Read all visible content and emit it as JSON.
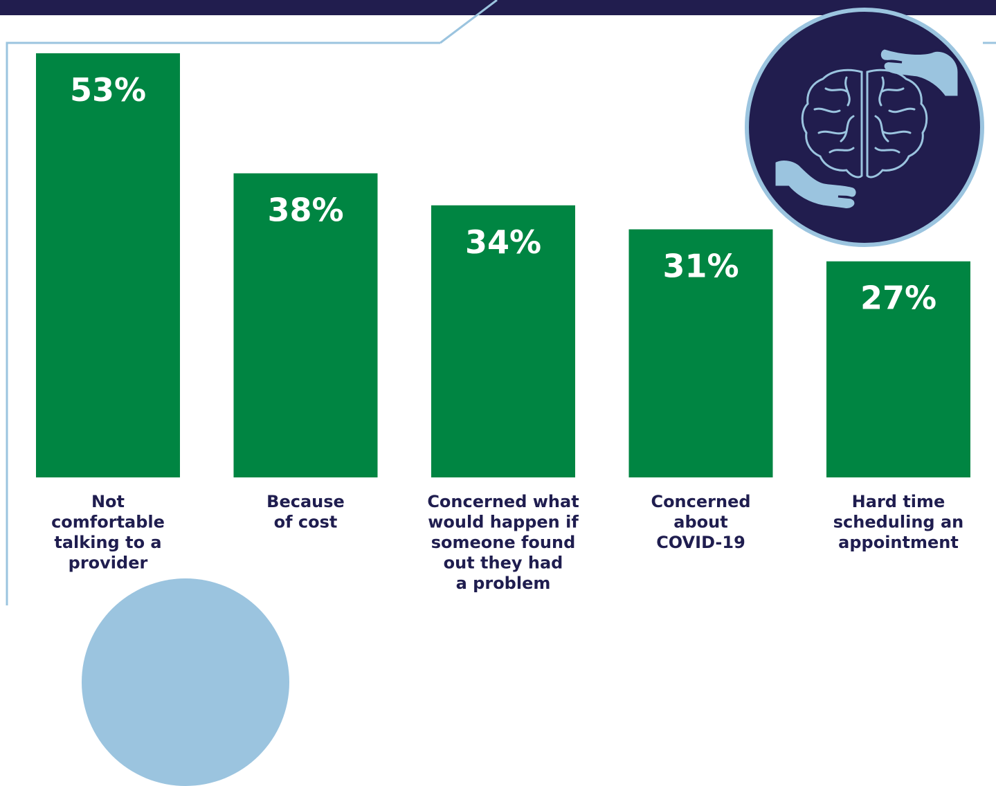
{
  "colors": {
    "navy": "#211d4e",
    "bar_green": "#008542",
    "light_blue": "#9bc4df",
    "label_navy": "#1f1d4f"
  },
  "icons": [
    "brain-icon",
    "hand-icon"
  ],
  "chart_data": {
    "type": "bar",
    "title": "",
    "xlabel": "",
    "ylabel": "",
    "ylim": [
      0,
      53
    ],
    "grid": false,
    "categories": [
      [
        "Not",
        "comfortable",
        "talking to a",
        "provider"
      ],
      [
        "Because",
        "of cost"
      ],
      [
        "Concerned what",
        "would happen if",
        "someone found",
        "out they had",
        "a problem"
      ],
      [
        "Concerned",
        "about",
        "COVID-19"
      ],
      [
        "Hard time",
        "scheduling an",
        "appointment"
      ]
    ],
    "values": [
      53,
      38,
      34,
      31,
      27
    ],
    "value_labels": [
      "53%",
      "38%",
      "34%",
      "31%",
      "27%"
    ]
  }
}
